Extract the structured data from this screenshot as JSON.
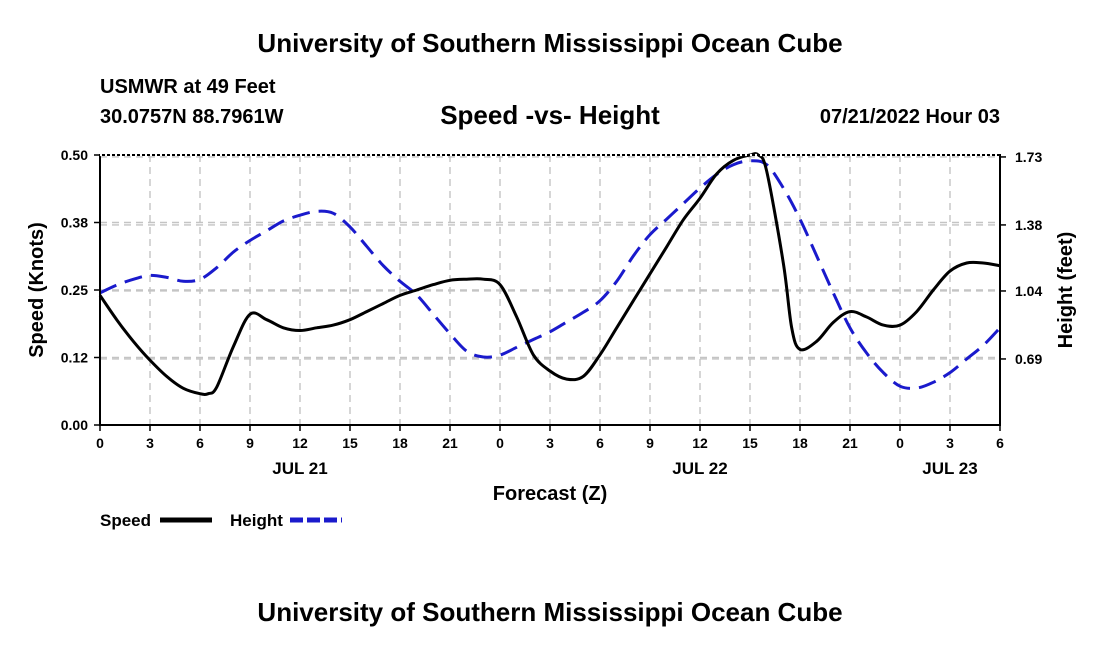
{
  "header": {
    "title": "University of Southern Mississippi Ocean Cube",
    "station": "USMWR at 49 Feet",
    "coords": "30.0757N  88.7961W",
    "subtitle": "Speed -vs- Height",
    "datetime": "07/21/2022 Hour 03"
  },
  "footer": {
    "title": "University of Southern Mississippi Ocean Cube"
  },
  "chart_data": {
    "type": "line",
    "title": "Speed -vs- Height",
    "xlabel": "Forecast (Z)",
    "ylabel": "Speed (Knots)",
    "y2label": "Height (feet)",
    "x_unit": "forecast hours from 00Z JUL 21",
    "xlim": [
      0,
      54
    ],
    "ylim": [
      0.0,
      0.5
    ],
    "y2lim": [
      0.35,
      1.74
    ],
    "x_ticks": [
      0,
      3,
      6,
      9,
      12,
      15,
      18,
      21,
      24,
      27,
      30,
      33,
      36,
      39,
      42,
      45,
      48,
      51,
      54
    ],
    "x_tick_labels": [
      "0",
      "3",
      "6",
      "9",
      "12",
      "15",
      "18",
      "21",
      "0",
      "3",
      "6",
      "9",
      "12",
      "15",
      "18",
      "21",
      "0",
      "3",
      "6"
    ],
    "y_ticks": [
      0.0,
      0.125,
      0.25,
      0.375,
      0.5
    ],
    "y_tick_labels": [
      "0.00",
      "0.12",
      "0.25",
      "0.38",
      "0.50"
    ],
    "y2_ticks": [
      0.69,
      1.04,
      1.38,
      1.73
    ],
    "y2_tick_labels": [
      "0.69",
      "1.04",
      "1.38",
      "1.73"
    ],
    "date_labels": [
      {
        "x": 12,
        "label": "JUL 21"
      },
      {
        "x": 36,
        "label": "JUL 22"
      },
      {
        "x": 51,
        "label": "JUL 23"
      }
    ],
    "grid": true,
    "legend_position": "bottom-left",
    "series": [
      {
        "name": "Speed",
        "axis": "left",
        "color": "#000000",
        "style": "solid",
        "x": [
          0,
          1,
          2,
          3,
          4,
          5,
          6,
          6.5,
          7,
          8,
          9,
          10,
          11,
          12,
          13,
          14,
          15,
          16,
          17,
          18,
          19,
          20,
          21,
          22,
          23,
          24,
          25,
          26,
          27,
          28,
          29,
          30,
          31,
          32,
          33,
          34,
          35,
          36,
          37,
          38,
          39,
          39.5,
          40,
          41,
          41.5,
          42,
          43,
          44,
          45,
          46,
          47,
          48,
          49,
          50,
          51,
          52,
          53,
          54
        ],
        "values": [
          0.24,
          0.195,
          0.155,
          0.12,
          0.09,
          0.068,
          0.058,
          0.058,
          0.07,
          0.145,
          0.205,
          0.195,
          0.18,
          0.175,
          0.18,
          0.185,
          0.195,
          0.21,
          0.225,
          0.24,
          0.25,
          0.26,
          0.268,
          0.27,
          0.27,
          0.26,
          0.2,
          0.13,
          0.1,
          0.085,
          0.09,
          0.13,
          0.18,
          0.23,
          0.28,
          0.33,
          0.38,
          0.42,
          0.465,
          0.49,
          0.5,
          0.5,
          0.47,
          0.3,
          0.18,
          0.14,
          0.155,
          0.19,
          0.21,
          0.2,
          0.185,
          0.185,
          0.21,
          0.25,
          0.285,
          0.3,
          0.3,
          0.295
        ]
      },
      {
        "name": "Height",
        "axis": "right",
        "color": "#1a1acc",
        "style": "dashed",
        "x": [
          0,
          1,
          2,
          3,
          4,
          5,
          6,
          7,
          8,
          9,
          10,
          11,
          12,
          13,
          14,
          15,
          16,
          17,
          18,
          19,
          20,
          21,
          22,
          23,
          24,
          25,
          26,
          27,
          28,
          29,
          30,
          31,
          32,
          33,
          34,
          35,
          36,
          37,
          38,
          39,
          40,
          41,
          42,
          43,
          44,
          45,
          46,
          47,
          48,
          49,
          50,
          51,
          52,
          53,
          54
        ],
        "values": [
          1.03,
          1.07,
          1.1,
          1.12,
          1.11,
          1.09,
          1.1,
          1.16,
          1.24,
          1.3,
          1.35,
          1.4,
          1.43,
          1.45,
          1.44,
          1.37,
          1.27,
          1.17,
          1.09,
          1.02,
          0.92,
          0.82,
          0.73,
          0.7,
          0.71,
          0.75,
          0.79,
          0.83,
          0.88,
          0.93,
          0.99,
          1.09,
          1.22,
          1.33,
          1.41,
          1.49,
          1.57,
          1.64,
          1.69,
          1.71,
          1.69,
          1.57,
          1.41,
          1.22,
          1.03,
          0.85,
          0.72,
          0.62,
          0.55,
          0.54,
          0.57,
          0.62,
          0.69,
          0.76,
          0.85
        ]
      }
    ],
    "legend": [
      {
        "name": "Speed",
        "label": "Speed",
        "color": "#000000",
        "style": "solid"
      },
      {
        "name": "Height",
        "label": "Height",
        "color": "#1a1acc",
        "style": "dashed"
      }
    ]
  }
}
